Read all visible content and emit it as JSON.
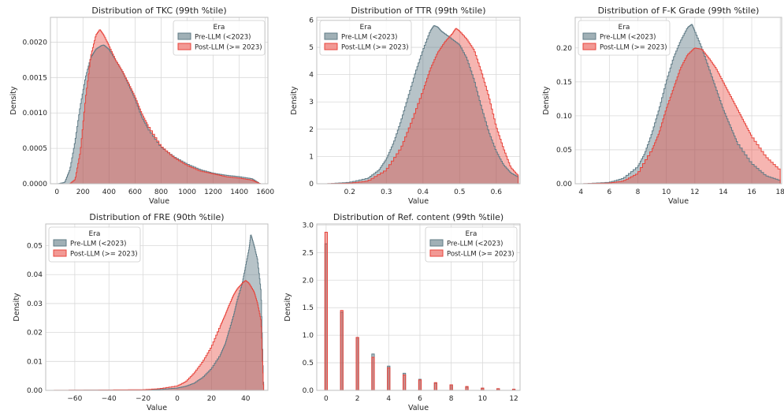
{
  "colors": {
    "pre": "#607b86",
    "pre_fill_opacity": 0.45,
    "post": "#e8453c",
    "post_fill_opacity": 0.4,
    "grid": "#d9d9d9",
    "frame": "#bfbfbf"
  },
  "chart_data": [
    {
      "type": "area",
      "title": "Distribution of TKC (99th %tile)",
      "xlabel": "Value",
      "ylabel": "Density",
      "xlim": [
        -50,
        1620
      ],
      "ylim": [
        0,
        0.00235
      ],
      "xticks": [
        0,
        200,
        400,
        600,
        800,
        1000,
        1200,
        1400,
        1600
      ],
      "yticks": [
        0.0,
        0.0005,
        0.001,
        0.0015,
        0.002
      ],
      "ytick_labels": [
        "0.0000",
        "0.0005",
        "0.0010",
        "0.0015",
        "0.0020"
      ],
      "legend": {
        "title": "Era",
        "position": "top-right"
      },
      "series": [
        {
          "name": "Pre-LLM (<2023)",
          "x": [
            10,
            60,
            100,
            140,
            180,
            220,
            260,
            300,
            340,
            360,
            400,
            450,
            500,
            550,
            600,
            650,
            700,
            800,
            900,
            1000,
            1100,
            1200,
            1300,
            1400,
            1500,
            1560
          ],
          "y": [
            0,
            2e-05,
            0.0002,
            0.0006,
            0.0011,
            0.0015,
            0.00178,
            0.0019,
            0.00195,
            0.00196,
            0.0019,
            0.00175,
            0.0016,
            0.0014,
            0.0012,
            0.00095,
            0.00078,
            0.00052,
            0.00038,
            0.00028,
            0.0002,
            0.00015,
            0.00012,
            0.0001,
            7e-05,
            0
          ]
        },
        {
          "name": "Post-LLM (>= 2023)",
          "x": [
            100,
            140,
            180,
            220,
            260,
            300,
            330,
            360,
            400,
            450,
            500,
            550,
            600,
            650,
            700,
            800,
            900,
            1000,
            1100,
            1200,
            1300,
            1400,
            1500,
            1560
          ],
          "y": [
            0,
            6e-05,
            0.00045,
            0.0012,
            0.0018,
            0.0021,
            0.00218,
            0.0021,
            0.00195,
            0.00175,
            0.0016,
            0.00142,
            0.00123,
            0.001,
            0.00082,
            0.00053,
            0.00037,
            0.00026,
            0.00018,
            0.00014,
            0.0001,
            8e-05,
            5e-05,
            0
          ]
        }
      ]
    },
    {
      "type": "area",
      "title": "Distribution of TTR (99th %tile)",
      "xlabel": "Value",
      "ylabel": "Density",
      "xlim": [
        0.11,
        0.665
      ],
      "ylim": [
        0,
        6.1
      ],
      "xticks": [
        0.2,
        0.3,
        0.4,
        0.5,
        0.6
      ],
      "yticks": [
        0,
        1,
        2,
        3,
        4,
        5,
        6
      ],
      "ytick_labels": [
        "0",
        "1",
        "2",
        "3",
        "4",
        "5",
        "6"
      ],
      "legend": {
        "title": "Era",
        "position": "top-left"
      },
      "series": [
        {
          "name": "Pre-LLM (<2023)",
          "x": [
            0.14,
            0.2,
            0.25,
            0.28,
            0.3,
            0.32,
            0.34,
            0.36,
            0.38,
            0.4,
            0.42,
            0.43,
            0.44,
            0.45,
            0.46,
            0.48,
            0.5,
            0.52,
            0.54,
            0.56,
            0.58,
            0.6,
            0.62,
            0.64,
            0.66
          ],
          "y": [
            0,
            0.05,
            0.2,
            0.5,
            0.9,
            1.5,
            2.3,
            3.2,
            4.1,
            4.9,
            5.6,
            5.8,
            5.75,
            5.6,
            5.5,
            5.3,
            5.1,
            4.6,
            3.8,
            2.8,
            1.9,
            1.2,
            0.7,
            0.4,
            0.25
          ]
        },
        {
          "name": "Post-LLM (>= 2023)",
          "x": [
            0.14,
            0.2,
            0.25,
            0.3,
            0.34,
            0.37,
            0.4,
            0.42,
            0.44,
            0.46,
            0.48,
            0.49,
            0.5,
            0.52,
            0.54,
            0.56,
            0.58,
            0.6,
            0.62,
            0.64,
            0.66
          ],
          "y": [
            0,
            0.02,
            0.1,
            0.5,
            1.3,
            2.3,
            3.4,
            4.2,
            4.8,
            5.2,
            5.5,
            5.7,
            5.6,
            5.3,
            4.9,
            4.1,
            3.2,
            2.1,
            1.3,
            0.6,
            0.3
          ]
        }
      ]
    },
    {
      "type": "area",
      "title": "Distribution of F-K Grade (99th %tile)",
      "xlabel": "Value",
      "ylabel": "Density",
      "xlim": [
        3.6,
        18.1
      ],
      "ylim": [
        0,
        0.245
      ],
      "xticks": [
        4,
        6,
        8,
        10,
        12,
        14,
        16,
        18
      ],
      "yticks": [
        0.0,
        0.05,
        0.1,
        0.15,
        0.2
      ],
      "ytick_labels": [
        "0.00",
        "0.05",
        "0.10",
        "0.15",
        "0.20"
      ],
      "legend": {
        "title": "Era",
        "position": "top-left"
      },
      "series": [
        {
          "name": "Pre-LLM (<2023)",
          "x": [
            4.2,
            6,
            7,
            8,
            8.5,
            9,
            9.5,
            10,
            10.5,
            11,
            11.5,
            11.8,
            12,
            12.5,
            13,
            13.5,
            14,
            14.5,
            15,
            16,
            17,
            18
          ],
          "y": [
            0,
            0.002,
            0.008,
            0.025,
            0.045,
            0.075,
            0.11,
            0.15,
            0.185,
            0.21,
            0.23,
            0.235,
            0.225,
            0.2,
            0.17,
            0.14,
            0.11,
            0.085,
            0.06,
            0.03,
            0.012,
            0.005
          ]
        },
        {
          "name": "Post-LLM (>= 2023)",
          "x": [
            4.2,
            6,
            7,
            8,
            9,
            9.5,
            10,
            10.5,
            11,
            11.5,
            12,
            12.5,
            13,
            13.5,
            14,
            14.5,
            15,
            15.5,
            16,
            17,
            18
          ],
          "y": [
            0,
            0.001,
            0.004,
            0.015,
            0.05,
            0.075,
            0.11,
            0.14,
            0.17,
            0.19,
            0.2,
            0.198,
            0.185,
            0.17,
            0.15,
            0.13,
            0.11,
            0.09,
            0.07,
            0.04,
            0.02
          ]
        }
      ]
    },
    {
      "type": "area",
      "title": "Distribution of FRE (90th %tile)",
      "xlabel": "Value",
      "ylabel": "Density",
      "xlim": [
        -77,
        53
      ],
      "ylim": [
        0,
        0.0575
      ],
      "xticks": [
        -60,
        -40,
        -20,
        0,
        20,
        40
      ],
      "yticks": [
        0.0,
        0.01,
        0.02,
        0.03,
        0.04,
        0.05
      ],
      "ytick_labels": [
        "0.00",
        "0.01",
        "0.02",
        "0.03",
        "0.04",
        "0.05"
      ],
      "legend": {
        "title": "Era",
        "position": "top-left"
      },
      "series": [
        {
          "name": "Pre-LLM (<2023)",
          "x": [
            -72,
            -20,
            -10,
            0,
            5,
            10,
            15,
            20,
            25,
            28,
            30,
            33,
            35,
            38,
            40,
            42,
            43,
            45,
            47,
            49,
            50.5
          ],
          "y": [
            0,
            0.0001,
            0.0003,
            0.0008,
            0.0014,
            0.0025,
            0.0045,
            0.0075,
            0.012,
            0.016,
            0.02,
            0.026,
            0.031,
            0.037,
            0.043,
            0.049,
            0.054,
            0.05,
            0.045,
            0.034,
            0
          ]
        },
        {
          "name": "Post-LLM (>= 2023)",
          "x": [
            -72,
            -20,
            -10,
            0,
            5,
            10,
            15,
            20,
            25,
            28,
            30,
            33,
            35,
            38,
            40,
            42,
            45,
            47,
            49,
            50.5
          ],
          "y": [
            0,
            0.0002,
            0.0006,
            0.0015,
            0.003,
            0.006,
            0.01,
            0.015,
            0.022,
            0.026,
            0.029,
            0.033,
            0.035,
            0.037,
            0.038,
            0.037,
            0.034,
            0.03,
            0.024,
            0
          ]
        }
      ]
    },
    {
      "type": "bar",
      "title": "Distribution of Ref. content (99th %tile)",
      "xlabel": "Value",
      "ylabel": "Density",
      "xlim": [
        -0.6,
        12.4
      ],
      "ylim": [
        0,
        3.02
      ],
      "xticks": [
        0,
        2,
        4,
        6,
        8,
        10,
        12
      ],
      "yticks": [
        0.0,
        0.5,
        1.0,
        1.5,
        2.0,
        2.5,
        3.0
      ],
      "ytick_labels": [
        "0.0",
        "0.5",
        "1.0",
        "1.5",
        "2.0",
        "2.5",
        "3.0"
      ],
      "legend": {
        "title": "Era",
        "position": "top-right"
      },
      "categories": [
        0,
        1,
        2,
        3,
        4,
        5,
        6,
        7,
        8,
        9,
        10,
        11,
        12
      ],
      "series": [
        {
          "name": "Pre-LLM (<2023)",
          "values": [
            2.66,
            1.42,
            0.96,
            0.66,
            0.44,
            0.31,
            0.2,
            0.13,
            0.1,
            0.06,
            0.04,
            0.03,
            0.02
          ]
        },
        {
          "name": "Post-LLM (>= 2023)",
          "values": [
            2.87,
            1.45,
            0.96,
            0.6,
            0.41,
            0.28,
            0.19,
            0.14,
            0.1,
            0.07,
            0.04,
            0.03,
            0.02
          ]
        }
      ]
    }
  ]
}
